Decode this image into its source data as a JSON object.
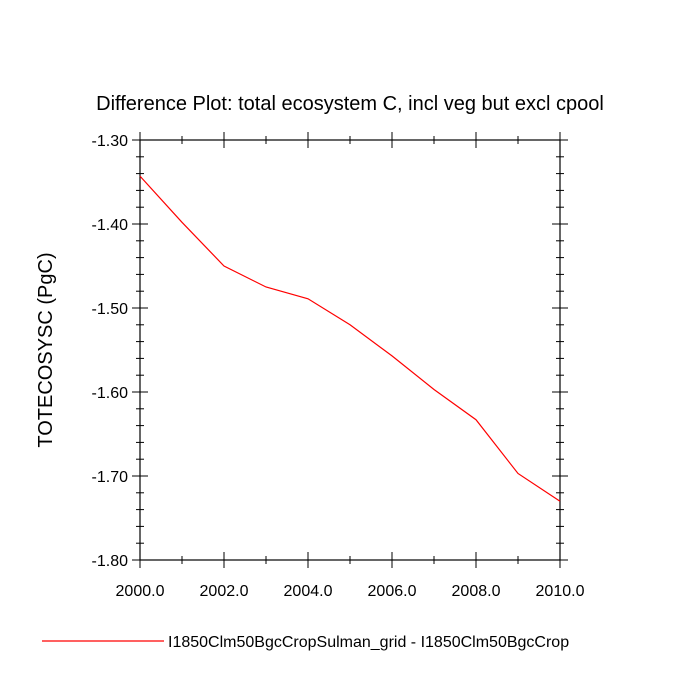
{
  "chart_data": {
    "type": "line",
    "title": "Difference Plot: total ecosystem C, incl veg but excl cpool",
    "xlabel": "",
    "ylabel": "TOTECOSYSC  (PgC)",
    "xlim": [
      2000,
      2010
    ],
    "ylim": [
      -1.8,
      -1.3
    ],
    "x_ticks": [
      2000,
      2002,
      2004,
      2006,
      2008,
      2010
    ],
    "x_tick_labels": [
      "2000.0",
      "2002.0",
      "2004.0",
      "2006.0",
      "2008.0",
      "2010.0"
    ],
    "y_ticks": [
      -1.3,
      -1.4,
      -1.5,
      -1.6,
      -1.7,
      -1.8
    ],
    "y_tick_labels": [
      "-1.30",
      "-1.40",
      "-1.50",
      "-1.60",
      "-1.70",
      "-1.80"
    ],
    "grid": false,
    "legend_position": "bottom",
    "series": [
      {
        "name": "I1850Clm50BgcCropSulman_grid - I1850Clm50BgcCrop",
        "color": "#ff0000",
        "x": [
          2000,
          2001,
          2002,
          2003,
          2004,
          2005,
          2006,
          2007,
          2008,
          2009,
          2010
        ],
        "y": [
          -1.343,
          -1.398,
          -1.45,
          -1.475,
          -1.489,
          -1.52,
          -1.557,
          -1.597,
          -1.633,
          -1.697,
          -1.73
        ]
      }
    ]
  }
}
